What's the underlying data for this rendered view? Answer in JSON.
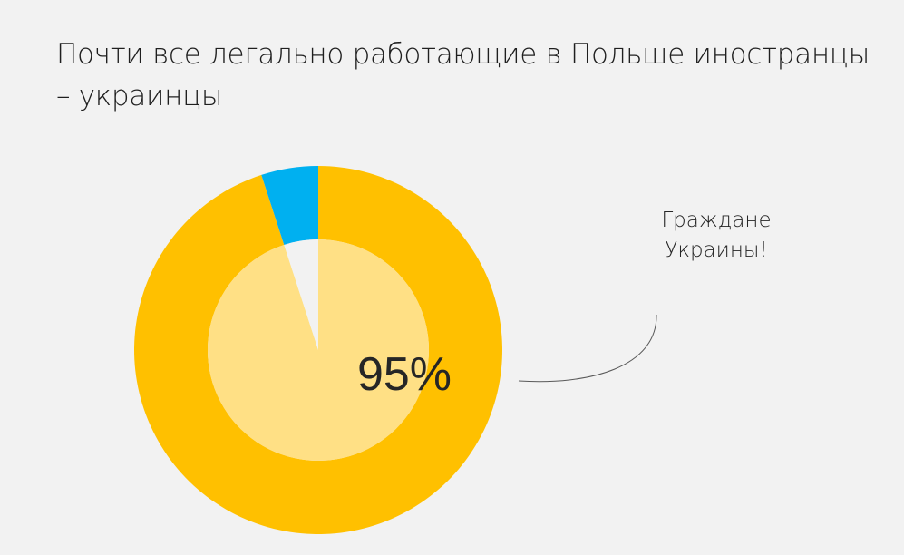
{
  "title": "Почти все легально работающие в Польше иностранцы – украинцы",
  "callout": {
    "lines": [
      "Граждане",
      "Украины!"
    ]
  },
  "chart_data": {
    "type": "pie",
    "series": [
      {
        "ring": "outer",
        "slices": [
          {
            "value": 95,
            "color": "#ffc000"
          },
          {
            "value": 5,
            "color": "#00b0f0"
          }
        ]
      },
      {
        "ring": "inner",
        "slices": [
          {
            "value": 95,
            "color": "#ffe085"
          },
          {
            "value": 5,
            "color": "#f2f2f2"
          }
        ]
      }
    ],
    "center_label": "95%"
  }
}
